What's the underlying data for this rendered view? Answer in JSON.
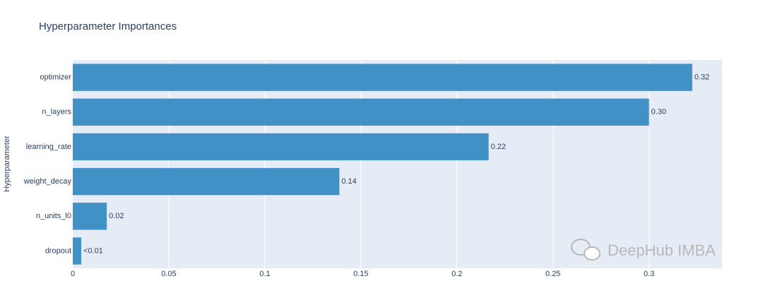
{
  "chart_data": {
    "type": "barh",
    "title": "Hyperparameter Importances",
    "ylabel": "Hyperparameter",
    "categories": [
      "optimizer",
      "n_layers",
      "learning_rate",
      "weight_decay",
      "n_units_l0",
      "dropout"
    ],
    "values": [
      0.3225,
      0.3,
      0.2165,
      0.1388,
      0.0177,
      0.0044
    ],
    "value_labels": [
      "0.32",
      "0.30",
      "0.22",
      "0.14",
      "0.02",
      "<0.01"
    ],
    "color": "#4190c6",
    "xlim": [
      0,
      0.338
    ],
    "xticks": [
      0,
      0.05,
      0.1,
      0.15,
      0.2,
      0.25,
      0.3
    ],
    "grid": true,
    "watermark": "DeepHub IMBA"
  }
}
